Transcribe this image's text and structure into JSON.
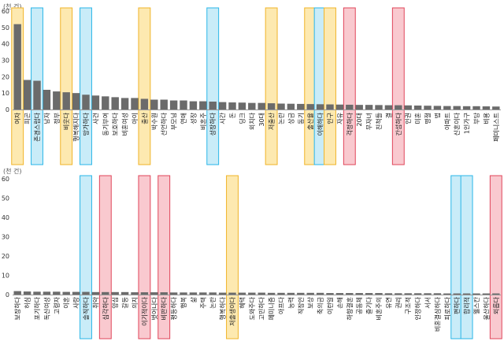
{
  "chart_data": [
    {
      "type": "bar",
      "unit_label": "(천 건)",
      "ylim": [
        0,
        60
      ],
      "yticks": [
        0,
        10,
        20,
        30,
        40,
        50,
        60
      ],
      "bar_color": "#6b6b6b",
      "categories": [
        "여자",
        "피곤",
        "존경스럽다",
        "남자",
        "정부",
        "비웃다",
        "행복해지다",
        "망가하다",
        "사건",
        "동기부여",
        "보호하다",
        "비혼여성",
        "아이",
        "출산",
        "박수원",
        "선언하다",
        "부모님",
        "연애",
        "성장",
        "비혼주",
        "성장하다",
        "시간",
        "돈",
        "딩크",
        "외치다",
        "30대",
        "저출산",
        "논란",
        "상금",
        "동기",
        "출산율",
        "이해하다",
        "인구",
        "자유",
        "걱정하다",
        "20대",
        "무자녀",
        "친척들",
        "결",
        "간섭하다",
        "인권",
        "미혼",
        "명절",
        "법",
        "아파트",
        "신혼이다",
        "1인가구",
        "부담",
        "비용",
        "페미니스트"
      ],
      "values": [
        52,
        18,
        17.5,
        12,
        11,
        10.5,
        10,
        9,
        8.5,
        8,
        7.5,
        7,
        7,
        6.5,
        6,
        6,
        5.5,
        5.5,
        5,
        5,
        4.8,
        4.5,
        4.3,
        4.2,
        4,
        4,
        3.8,
        3.6,
        3.5,
        3.4,
        3.3,
        3.2,
        3.1,
        3,
        2.9,
        2.8,
        2.8,
        2.7,
        2.6,
        2.6,
        2.5,
        2.4,
        2.3,
        2.2,
        2.1,
        2.1,
        2,
        2,
        1.9,
        1.8
      ],
      "highlights": [
        {
          "index": 0,
          "color": "yellow"
        },
        {
          "index": 2,
          "color": "blue"
        },
        {
          "index": 5,
          "color": "yellow"
        },
        {
          "index": 7,
          "color": "blue"
        },
        {
          "index": 13,
          "color": "yellow"
        },
        {
          "index": 20,
          "color": "blue"
        },
        {
          "index": 26,
          "color": "yellow"
        },
        {
          "index": 30,
          "color": "yellow"
        },
        {
          "index": 31,
          "color": "blue"
        },
        {
          "index": 32,
          "color": "yellow"
        },
        {
          "index": 34,
          "color": "red"
        },
        {
          "index": 39,
          "color": "red"
        }
      ]
    },
    {
      "type": "bar",
      "unit_label": "(천 건)",
      "ylim": [
        0,
        60
      ],
      "yticks": [
        0,
        10,
        20,
        30,
        40,
        50,
        60
      ],
      "bar_color": "#6b6b6b",
      "categories": [
        "보장하다",
        "허심",
        "포기하다",
        "독신여성",
        "고령자",
        "이혼",
        "사랑",
        "솔직하다",
        "취약",
        "심각하다",
        "양심",
        "갈등",
        "의지",
        "이기적이다",
        "벗어나다",
        "비판하다",
        "평등하다",
        "행복",
        "삶",
        "주택",
        "논란",
        "행복하다",
        "저출생이다",
        "혜택",
        "도와주다",
        "고민하다",
        "페미니즘",
        "아프다",
        "능력",
        "직장인",
        "보상",
        "축의금",
        "이런일",
        "손해",
        "하향결혼",
        "공동체",
        "즐기다",
        "비혼주의",
        "유연",
        "권리",
        "구조적",
        "인정하다",
        "서서",
        "비혼결심하다",
        "피로하다",
        "편하다",
        "합리적",
        "웰스칸",
        "울산하다",
        "외롭다"
      ],
      "values": [
        1.8,
        1.6,
        1.5,
        1.5,
        1.5,
        1.4,
        1.4,
        1.4,
        1.3,
        1.3,
        1.3,
        1.3,
        1.2,
        1.2,
        1.2,
        1.2,
        1.1,
        1.1,
        1.1,
        1.1,
        1.1,
        1.0,
        1.0,
        1.0,
        1.0,
        1.0,
        0.9,
        0.9,
        0.9,
        0.9,
        0.9,
        0.9,
        0.8,
        0.8,
        0.8,
        0.8,
        0.8,
        0.8,
        0.7,
        0.7,
        0.7,
        0.7,
        0.7,
        0.7,
        0.6,
        0.6,
        0.6,
        0.6,
        0.6,
        0.6
      ],
      "highlights": [
        {
          "index": 7,
          "color": "blue"
        },
        {
          "index": 9,
          "color": "red"
        },
        {
          "index": 13,
          "color": "red"
        },
        {
          "index": 15,
          "color": "red"
        },
        {
          "index": 22,
          "color": "yellow"
        },
        {
          "index": 45,
          "color": "blue"
        },
        {
          "index": 46,
          "color": "blue"
        },
        {
          "index": 49,
          "color": "red"
        }
      ]
    }
  ],
  "highlight_colors": {
    "yellow": {
      "fill": "#fde9b0",
      "stroke": "#f0b429"
    },
    "blue": {
      "fill": "#c9ecf8",
      "stroke": "#29b6e8"
    },
    "red": {
      "fill": "#f9c9cf",
      "stroke": "#e0455a"
    }
  }
}
